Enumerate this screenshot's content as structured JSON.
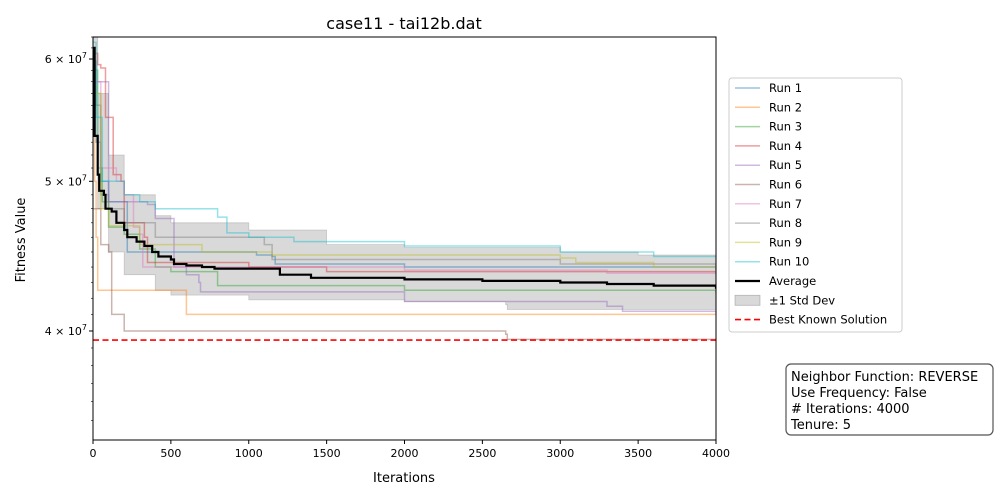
{
  "chart_data": {
    "type": "line",
    "title": "case11 - tai12b.dat",
    "xlabel": "Iterations",
    "ylabel": "Fitness Value",
    "xlim": [
      0,
      4000
    ],
    "ylim": [
      34000000,
      62000000
    ],
    "y_scale": "log",
    "grid": false,
    "x_ticks": [
      {
        "value": 0,
        "label": "0"
      },
      {
        "value": 500,
        "label": "500"
      },
      {
        "value": 1000,
        "label": "1000"
      },
      {
        "value": 1500,
        "label": "1500"
      },
      {
        "value": 2000,
        "label": "2000"
      },
      {
        "value": 2500,
        "label": "2500"
      },
      {
        "value": 3000,
        "label": "3000"
      },
      {
        "value": 3500,
        "label": "3500"
      },
      {
        "value": 4000,
        "label": "4000"
      }
    ],
    "y_ticks": [
      {
        "value": 40000000,
        "mantissa": "4",
        "base": "10",
        "exp": "7"
      },
      {
        "value": 50000000,
        "mantissa": "5",
        "base": "10",
        "exp": "7"
      },
      {
        "value": 60000000,
        "mantissa": "6",
        "base": "10",
        "exp": "7"
      }
    ],
    "legend_position": "right",
    "series": [
      {
        "name": "Run 1",
        "color": "#1f77b4",
        "points": [
          [
            0,
            59800000
          ],
          [
            20,
            53000000
          ],
          [
            50,
            50000000
          ],
          [
            100,
            48500000
          ],
          [
            220,
            45000000
          ],
          [
            1000,
            45000000
          ],
          [
            1050,
            44800000
          ],
          [
            1150,
            44700000
          ],
          [
            1170,
            44200000
          ],
          [
            2000,
            44000000
          ],
          [
            4000,
            43800000
          ]
        ]
      },
      {
        "name": "Run 2",
        "color": "#ff7f0e",
        "points": [
          [
            0,
            60000000
          ],
          [
            10,
            50000000
          ],
          [
            20,
            46000000
          ],
          [
            30,
            42500000
          ],
          [
            600,
            41000000
          ],
          [
            4000,
            41000000
          ]
        ]
      },
      {
        "name": "Run 3",
        "color": "#2ca02c",
        "points": [
          [
            0,
            59000000
          ],
          [
            30,
            51000000
          ],
          [
            60,
            48500000
          ],
          [
            100,
            46700000
          ],
          [
            200,
            46200000
          ],
          [
            300,
            45200000
          ],
          [
            400,
            44000000
          ],
          [
            500,
            43700000
          ],
          [
            800,
            42800000
          ],
          [
            2000,
            42500000
          ],
          [
            4000,
            42300000
          ]
        ]
      },
      {
        "name": "Run 4",
        "color": "#d62728",
        "points": [
          [
            0,
            60500000
          ],
          [
            30,
            59500000
          ],
          [
            50,
            59200000
          ],
          [
            80,
            55000000
          ],
          [
            130,
            50500000
          ],
          [
            180,
            50000000
          ],
          [
            200,
            47000000
          ],
          [
            330,
            46000000
          ],
          [
            350,
            44300000
          ],
          [
            1000,
            44000000
          ],
          [
            1500,
            43700000
          ],
          [
            4000,
            43600000
          ]
        ]
      },
      {
        "name": "Run 5",
        "color": "#9467bd",
        "points": [
          [
            0,
            58000000
          ],
          [
            100,
            48500000
          ],
          [
            300,
            48500000
          ],
          [
            350,
            48300000
          ],
          [
            400,
            47300000
          ],
          [
            510,
            47300000
          ],
          [
            520,
            44000000
          ],
          [
            600,
            43500000
          ],
          [
            680,
            43000000
          ],
          [
            690,
            42400000
          ],
          [
            2000,
            41800000
          ],
          [
            3300,
            41500000
          ],
          [
            3400,
            41200000
          ],
          [
            4000,
            41100000
          ]
        ]
      },
      {
        "name": "Run 6",
        "color": "#8c564b",
        "points": [
          [
            0,
            48000000
          ],
          [
            50,
            45500000
          ],
          [
            100,
            45000000
          ],
          [
            120,
            41000000
          ],
          [
            200,
            40000000
          ],
          [
            2650,
            39800000
          ],
          [
            2660,
            39500000
          ],
          [
            4000,
            39500000
          ]
        ]
      },
      {
        "name": "Run 7",
        "color": "#e377c2",
        "points": [
          [
            0,
            58000000
          ],
          [
            50,
            51000000
          ],
          [
            150,
            50000000
          ],
          [
            200,
            49000000
          ],
          [
            260,
            46700000
          ],
          [
            300,
            46200000
          ],
          [
            320,
            44000000
          ],
          [
            500,
            44000000
          ],
          [
            2000,
            43800000
          ],
          [
            3300,
            43600000
          ],
          [
            4000,
            43500000
          ]
        ]
      },
      {
        "name": "Run 8",
        "color": "#7f7f7f",
        "points": [
          [
            0,
            56000000
          ],
          [
            50,
            49000000
          ],
          [
            100,
            48000000
          ],
          [
            200,
            47000000
          ],
          [
            400,
            46000000
          ],
          [
            1100,
            45500000
          ],
          [
            1150,
            44500000
          ],
          [
            3000,
            44200000
          ],
          [
            4000,
            44000000
          ]
        ]
      },
      {
        "name": "Run 9",
        "color": "#bcbd22",
        "points": [
          [
            0,
            57000000
          ],
          [
            50,
            48000000
          ],
          [
            100,
            46800000
          ],
          [
            300,
            45500000
          ],
          [
            700,
            45000000
          ],
          [
            1150,
            44800000
          ],
          [
            3000,
            44600000
          ],
          [
            3100,
            44300000
          ],
          [
            3600,
            44000000
          ],
          [
            4000,
            43700000
          ]
        ]
      },
      {
        "name": "Run 10",
        "color": "#17becf",
        "points": [
          [
            0,
            61500000
          ],
          [
            20,
            55000000
          ],
          [
            60,
            50000000
          ],
          [
            200,
            49000000
          ],
          [
            300,
            48500000
          ],
          [
            400,
            48000000
          ],
          [
            800,
            47400000
          ],
          [
            860,
            46300000
          ],
          [
            1000,
            46000000
          ],
          [
            1280,
            46000000
          ],
          [
            1290,
            45700000
          ],
          [
            2000,
            45400000
          ],
          [
            3000,
            45000000
          ],
          [
            3600,
            44700000
          ],
          [
            4000,
            44700000
          ]
        ]
      }
    ],
    "average": {
      "name": "Average",
      "color": "#000000",
      "points": [
        [
          0,
          61000000
        ],
        [
          10,
          53500000
        ],
        [
          30,
          50500000
        ],
        [
          40,
          49300000
        ],
        [
          70,
          49000000
        ],
        [
          80,
          48000000
        ],
        [
          120,
          47800000
        ],
        [
          150,
          47000000
        ],
        [
          200,
          46500000
        ],
        [
          220,
          46000000
        ],
        [
          280,
          45700000
        ],
        [
          330,
          45400000
        ],
        [
          380,
          45000000
        ],
        [
          420,
          44700000
        ],
        [
          500,
          44500000
        ],
        [
          520,
          44200000
        ],
        [
          600,
          44100000
        ],
        [
          700,
          44000000
        ],
        [
          780,
          43900000
        ],
        [
          1200,
          43500000
        ],
        [
          1400,
          43300000
        ],
        [
          2000,
          43200000
        ],
        [
          2500,
          43100000
        ],
        [
          3000,
          43000000
        ],
        [
          3300,
          42900000
        ],
        [
          3600,
          42800000
        ],
        [
          4000,
          42600000
        ]
      ]
    },
    "std_dev": {
      "name": "±1 Std Dev",
      "color": "#808080",
      "upper": [
        [
          0,
          62000000
        ],
        [
          30,
          57000000
        ],
        [
          100,
          52000000
        ],
        [
          200,
          49000000
        ],
        [
          400,
          47500000
        ],
        [
          500,
          47000000
        ],
        [
          1000,
          46500000
        ],
        [
          1500,
          45500000
        ],
        [
          2000,
          45300000
        ],
        [
          3000,
          45000000
        ],
        [
          3500,
          44800000
        ],
        [
          4000,
          44500000
        ]
      ],
      "lower": [
        [
          0,
          56000000
        ],
        [
          30,
          48000000
        ],
        [
          100,
          45000000
        ],
        [
          200,
          43500000
        ],
        [
          400,
          42500000
        ],
        [
          500,
          42200000
        ],
        [
          1000,
          41900000
        ],
        [
          2000,
          41800000
        ],
        [
          2650,
          41600000
        ],
        [
          2660,
          41300000
        ],
        [
          4000,
          41200000
        ]
      ]
    },
    "best_known": {
      "name": "Best Known Solution",
      "color": "#ff0000",
      "value": 39464925
    },
    "info_box": {
      "lines": [
        "Neighbor Function: REVERSE",
        "Use Frequency: False",
        "# Iterations: 4000",
        "Tenure: 5"
      ]
    }
  }
}
